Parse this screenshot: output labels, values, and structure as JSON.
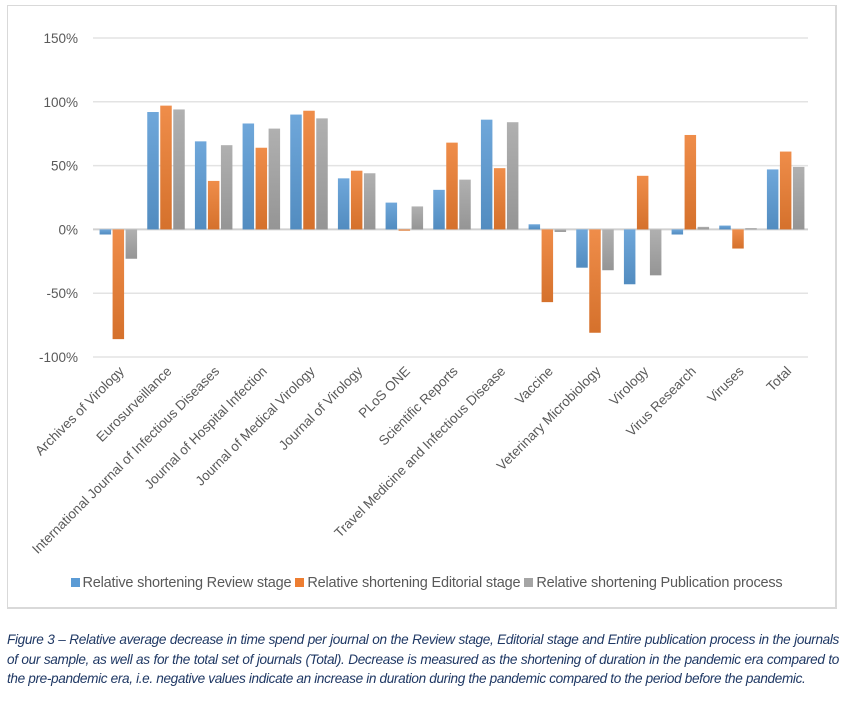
{
  "chart_data": {
    "type": "bar",
    "title": "",
    "xlabel": "",
    "ylabel": "",
    "ylim": [
      -1.0,
      1.5
    ],
    "yticks": [
      1.5,
      1.0,
      0.5,
      0.0,
      -0.5,
      -1.0
    ],
    "ytick_labels": [
      "150%",
      "100%",
      "50%",
      "0%",
      "-50%",
      "-100%"
    ],
    "grid": true,
    "legend_position": "bottom",
    "categories": [
      "Archives of Virology",
      "Eurosurveillance",
      "International Journal of Infectious Diseases",
      "Journal of Hospital Infection",
      "Journal of Medical Virology",
      "Journal of Virology",
      "PLoS ONE",
      "Scientific Reports",
      "Travel Medicine and Infectious Disease",
      "Vaccine",
      "Veterinary Microbiology",
      "Virology",
      "Virus Research",
      "Viruses",
      "Total"
    ],
    "series": [
      {
        "name": "Relative shortening Review stage",
        "color": "#5b9bd5",
        "values": [
          -0.04,
          0.92,
          0.69,
          0.83,
          0.9,
          0.4,
          0.21,
          0.31,
          0.86,
          0.04,
          -0.3,
          -0.43,
          -0.04,
          0.03,
          0.47
        ]
      },
      {
        "name": "Relative shortening Editorial stage",
        "color": "#ed7d31",
        "values": [
          -0.86,
          0.97,
          0.38,
          0.64,
          0.93,
          0.46,
          -0.01,
          0.68,
          0.48,
          -0.57,
          -0.81,
          0.42,
          0.74,
          -0.15,
          0.61
        ]
      },
      {
        "name": "Relative shortening Publication process",
        "color": "#a5a5a5",
        "values": [
          -0.23,
          0.94,
          0.66,
          0.79,
          0.87,
          0.44,
          0.18,
          0.39,
          0.84,
          -0.02,
          -0.32,
          -0.36,
          0.02,
          0.01,
          0.49
        ]
      }
    ]
  },
  "caption": "Figure 3 – Relative average decrease in time spend per journal on the Review stage, Editorial stage and Entire publication process in the journals of our sample, as well as for the total set of journals (Total). Decrease is measured as the shortening of duration in the pandemic era compared to the pre-pandemic era, i.e. negative values indicate an increase in duration during the pandemic compared to the period before the pandemic."
}
